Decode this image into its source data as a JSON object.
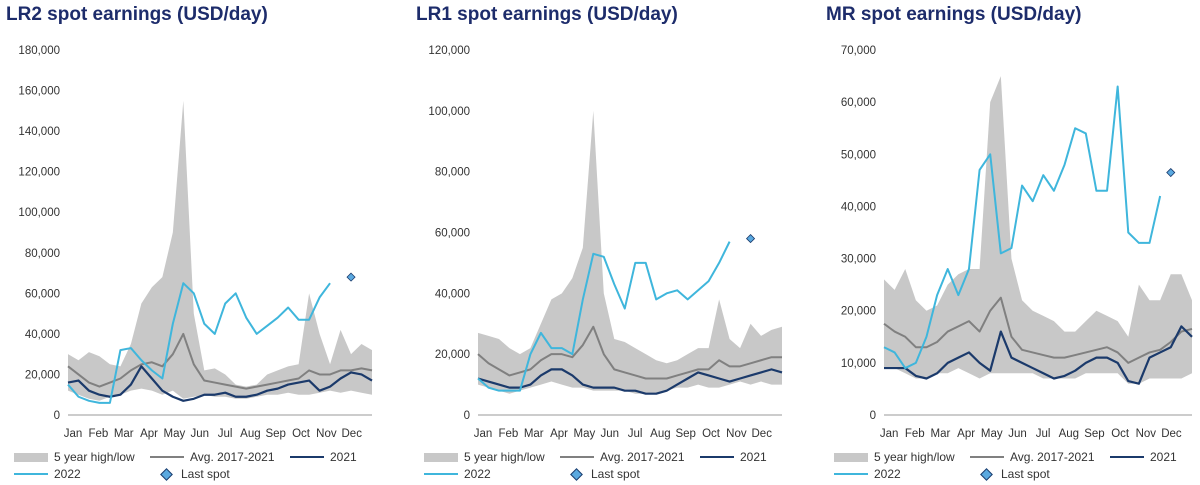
{
  "colors": {
    "band": "#c8c8c8",
    "avg": "#808080",
    "y2021": "#1b3a6b",
    "y2022": "#3fb6dc",
    "last": "#5aa9e0",
    "title": "#1d2c6b"
  },
  "x_labels": [
    "Jan",
    "Feb",
    "Mar",
    "Apr",
    "May",
    "Jun",
    "Jul",
    "Aug",
    "Sep",
    "Oct",
    "Nov",
    "Dec"
  ],
  "legend": {
    "band": "5 year high/low",
    "avg": "Avg. 2017-2021",
    "y2021": "2021",
    "y2022": "2022",
    "last": "Last spot"
  },
  "chart_data": [
    {
      "type": "line",
      "title": "LR2 spot earnings (USD/day)",
      "ylim": [
        0,
        180000
      ],
      "yticks": [
        "0",
        "20,000",
        "40,000",
        "60,000",
        "80,000",
        "100,000",
        "120,000",
        "140,000",
        "160,000",
        "180,000"
      ],
      "band_high": [
        30000,
        27000,
        31000,
        29000,
        25000,
        24000,
        35000,
        55000,
        63000,
        68000,
        90000,
        155000,
        50000,
        22000,
        23000,
        20000,
        15000,
        14000,
        15000,
        20000,
        22000,
        24000,
        25000,
        60000,
        40000,
        25000,
        42000,
        30000,
        35000,
        32000
      ],
      "band_low": [
        12000,
        10000,
        8000,
        7000,
        9000,
        10000,
        12000,
        13000,
        12000,
        10000,
        12000,
        8000,
        9000,
        10000,
        9000,
        9000,
        8000,
        8000,
        9000,
        10000,
        10000,
        11000,
        10000,
        10000,
        11000,
        12000,
        11000,
        12000,
        11000,
        10000
      ],
      "avg": [
        24000,
        20000,
        16000,
        14000,
        16000,
        18000,
        22000,
        25000,
        26000,
        24000,
        30000,
        40000,
        25000,
        17000,
        16000,
        15000,
        14000,
        13000,
        14000,
        15000,
        16000,
        17000,
        18000,
        22000,
        20000,
        20000,
        22000,
        22000,
        23000,
        22000
      ],
      "y2021": [
        16000,
        17000,
        12000,
        10000,
        9000,
        10000,
        15000,
        24000,
        18000,
        12000,
        9000,
        7000,
        8000,
        10000,
        10000,
        11000,
        9000,
        9000,
        10000,
        12000,
        13000,
        15000,
        16000,
        17000,
        12000,
        14000,
        18000,
        21000,
        20000,
        17000
      ],
      "y2022": [
        15000,
        9000,
        7000,
        6000,
        6000,
        32000,
        33000,
        27000,
        22000,
        18000,
        45000,
        65000,
        60000,
        45000,
        40000,
        55000,
        60000,
        48000,
        40000,
        44000,
        48000,
        53000,
        47000,
        47000,
        58000,
        65000
      ],
      "last_spot": 68000,
      "last_spot_index": 27
    },
    {
      "type": "line",
      "title": "LR1 spot earnings (USD/day)",
      "ylim": [
        0,
        120000
      ],
      "yticks": [
        "0",
        "20,000",
        "40,000",
        "60,000",
        "80,000",
        "100,000",
        "120,000"
      ],
      "band_high": [
        27000,
        26000,
        25000,
        22000,
        20000,
        22000,
        30000,
        38000,
        40000,
        45000,
        55000,
        100000,
        40000,
        25000,
        24000,
        22000,
        20000,
        18000,
        17000,
        18000,
        20000,
        22000,
        22000,
        38000,
        25000,
        22000,
        30000,
        26000,
        28000,
        29000
      ],
      "band_low": [
        10000,
        9000,
        8000,
        7000,
        8000,
        9000,
        10000,
        11000,
        10000,
        9000,
        9000,
        8000,
        8000,
        8000,
        8000,
        7000,
        7000,
        7000,
        8000,
        9000,
        9000,
        10000,
        9000,
        9000,
        10000,
        11000,
        10000,
        11000,
        10000,
        10000
      ],
      "avg": [
        20000,
        17000,
        15000,
        13000,
        14000,
        15000,
        18000,
        20000,
        20000,
        19000,
        23000,
        29000,
        20000,
        15000,
        14000,
        13000,
        12000,
        12000,
        12000,
        13000,
        14000,
        15000,
        15000,
        18000,
        16000,
        16000,
        17000,
        18000,
        19000,
        19000
      ],
      "y2021": [
        12000,
        11000,
        10000,
        9000,
        9000,
        10000,
        13000,
        15000,
        15000,
        13000,
        10000,
        9000,
        9000,
        9000,
        8000,
        8000,
        7000,
        7000,
        8000,
        10000,
        12000,
        14000,
        13000,
        12000,
        11000,
        12000,
        13000,
        14000,
        15000,
        14000
      ],
      "y2022": [
        12000,
        9000,
        8000,
        8000,
        8000,
        20000,
        27000,
        22000,
        22000,
        20000,
        38000,
        53000,
        52000,
        43000,
        35000,
        50000,
        50000,
        38000,
        40000,
        41000,
        38000,
        41000,
        44000,
        50000,
        57000
      ],
      "last_spot": 58000,
      "last_spot_index": 26
    },
    {
      "type": "line",
      "title": "MR spot earnings (USD/day)",
      "ylim": [
        0,
        70000
      ],
      "yticks": [
        "0",
        "10,000",
        "20,000",
        "30,000",
        "40,000",
        "50,000",
        "60,000",
        "70,000"
      ],
      "band_high": [
        26000,
        24000,
        28000,
        22000,
        20000,
        21000,
        25000,
        27000,
        28000,
        28000,
        60000,
        65000,
        30000,
        22000,
        20000,
        19000,
        18000,
        16000,
        16000,
        18000,
        20000,
        19000,
        18000,
        15000,
        25000,
        22000,
        22000,
        27000,
        27000,
        22000
      ],
      "band_low": [
        9000,
        9000,
        8000,
        7000,
        7000,
        8000,
        8000,
        9000,
        8000,
        7000,
        8000,
        8000,
        8000,
        8000,
        8000,
        7000,
        7000,
        7000,
        7000,
        8000,
        8000,
        8000,
        8000,
        6000,
        6000,
        7000,
        7000,
        7000,
        7000,
        8000
      ],
      "avg": [
        17500,
        16000,
        15000,
        13000,
        13000,
        14000,
        16000,
        17000,
        18000,
        16000,
        20000,
        22500,
        15000,
        12500,
        12000,
        11500,
        11000,
        11000,
        11500,
        12000,
        12500,
        13000,
        12000,
        10000,
        11000,
        12000,
        12500,
        14000,
        16000,
        16500
      ],
      "y2021": [
        9000,
        9000,
        9000,
        7500,
        7000,
        8000,
        10000,
        11000,
        12000,
        10000,
        8500,
        16000,
        11000,
        10000,
        9000,
        8000,
        7000,
        7500,
        8500,
        10000,
        11000,
        11000,
        10000,
        6500,
        6000,
        11000,
        12000,
        13000,
        17000,
        15000
      ],
      "y2022": [
        13000,
        12000,
        9000,
        10000,
        15000,
        23000,
        28000,
        23000,
        28000,
        47000,
        50000,
        31000,
        32000,
        44000,
        41000,
        46000,
        43000,
        48000,
        55000,
        54000,
        43000,
        43000,
        63000,
        35000,
        33000,
        33000,
        42000
      ],
      "last_spot": 46500,
      "last_spot_index": 27
    }
  ]
}
